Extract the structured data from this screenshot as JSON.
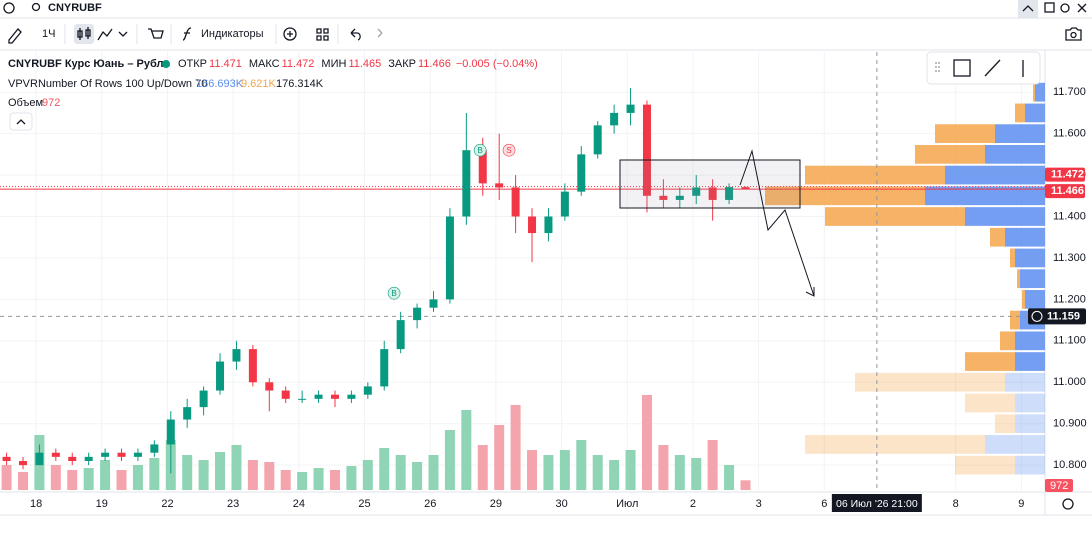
{
  "search": {
    "symbol": "CNYRUBF"
  },
  "toolbar": {
    "interval": "1Ч",
    "indicators": "Индикаторы"
  },
  "legend": {
    "name": "CNYRUBF Курс Юань – Рубль",
    "open_label": "ОТКР",
    "high_label": "МАКС",
    "low_label": "МИН",
    "close_label": "ЗАКР",
    "change": "−0.005 (−0.04%)",
    "vpvr_name": "VPVRNumber Of Rows 100 Up/Down 70",
    "vpvr_up": "166.693K",
    "vpvr_down": "9.621K",
    "vpvr_total": "176.314K",
    "volume_label": "Объем"
  },
  "chart": {
    "type": "candlestick",
    "ylim": [
      10.74,
      11.797
    ],
    "xlim": [
      -0.55,
      15.36
    ],
    "vlim": [
      0,
      10000
    ],
    "profile_lim": [
      0,
      28
    ],
    "grid": true,
    "up_color": "#089981",
    "down_color": "#f23645",
    "profile_up_color": "#5b8def",
    "profile_down_color": "#f5a54a",
    "yticks": [
      {
        "value": 10.8,
        "label": "10.800"
      },
      {
        "value": 10.9,
        "label": "10.900"
      },
      {
        "value": 11.0,
        "label": "11.000"
      },
      {
        "value": 11.1,
        "label": "11.100"
      },
      {
        "value": 11.2,
        "label": "11.200"
      },
      {
        "value": 11.3,
        "label": "11.300"
      },
      {
        "value": 11.4,
        "label": "11.400"
      },
      {
        "value": 11.5,
        "label": "11.500"
      },
      {
        "value": 11.6,
        "label": "11.600"
      },
      {
        "value": 11.7,
        "label": "11.700"
      }
    ],
    "xticks": [
      {
        "value": 0,
        "label": "18"
      },
      {
        "value": 1,
        "label": "19"
      },
      {
        "value": 2,
        "label": "22"
      },
      {
        "value": 3,
        "label": "23"
      },
      {
        "value": 4,
        "label": "24"
      },
      {
        "value": 5,
        "label": "25"
      },
      {
        "value": 6,
        "label": "26"
      },
      {
        "value": 7,
        "label": "29"
      },
      {
        "value": 8,
        "label": "30"
      },
      {
        "value": 9,
        "label": "Июл"
      },
      {
        "value": 10,
        "label": "2"
      },
      {
        "value": 11,
        "label": "3"
      },
      {
        "value": 12,
        "label": "6"
      },
      {
        "value": 14,
        "label": "8"
      },
      {
        "value": 15,
        "label": "9"
      }
    ],
    "candles": [
      {
        "t": -0.45,
        "o": 10.82,
        "h": 10.83,
        "l": 10.8,
        "c": 10.81,
        "v": 2500
      },
      {
        "t": -0.2,
        "o": 10.81,
        "h": 10.82,
        "l": 10.79,
        "c": 10.8,
        "v": 1800
      },
      {
        "t": 0.05,
        "o": 10.8,
        "h": 10.85,
        "l": 10.8,
        "c": 10.83,
        "v": 5500
      },
      {
        "t": 0.3,
        "o": 10.83,
        "h": 10.84,
        "l": 10.81,
        "c": 10.82,
        "v": 2500
      },
      {
        "t": 0.55,
        "o": 10.82,
        "h": 10.83,
        "l": 10.8,
        "c": 10.81,
        "v": 2000
      },
      {
        "t": 0.8,
        "o": 10.81,
        "h": 10.83,
        "l": 10.8,
        "c": 10.82,
        "v": 2200
      },
      {
        "t": 1.05,
        "o": 10.82,
        "h": 10.84,
        "l": 10.81,
        "c": 10.83,
        "v": 3000
      },
      {
        "t": 1.3,
        "o": 10.83,
        "h": 10.84,
        "l": 10.81,
        "c": 10.82,
        "v": 2000
      },
      {
        "t": 1.55,
        "o": 10.82,
        "h": 10.84,
        "l": 10.81,
        "c": 10.83,
        "v": 2500
      },
      {
        "t": 1.8,
        "o": 10.83,
        "h": 10.86,
        "l": 10.82,
        "c": 10.85,
        "v": 3200
      },
      {
        "t": 2.05,
        "o": 10.85,
        "h": 10.93,
        "l": 10.78,
        "c": 10.91,
        "v": 5000
      },
      {
        "t": 2.3,
        "o": 10.91,
        "h": 10.96,
        "l": 10.89,
        "c": 10.94,
        "v": 3500
      },
      {
        "t": 2.55,
        "o": 10.94,
        "h": 10.99,
        "l": 10.92,
        "c": 10.98,
        "v": 3000
      },
      {
        "t": 2.8,
        "o": 10.98,
        "h": 11.07,
        "l": 10.97,
        "c": 11.05,
        "v": 3800
      },
      {
        "t": 3.05,
        "o": 11.05,
        "h": 11.1,
        "l": 11.03,
        "c": 11.08,
        "v": 4500
      },
      {
        "t": 3.3,
        "o": 11.08,
        "h": 11.09,
        "l": 10.99,
        "c": 11.0,
        "v": 3000
      },
      {
        "t": 3.55,
        "o": 11.0,
        "h": 11.01,
        "l": 10.93,
        "c": 10.98,
        "v": 2800
      },
      {
        "t": 3.8,
        "o": 10.98,
        "h": 10.99,
        "l": 10.95,
        "c": 10.96,
        "v": 2000
      },
      {
        "t": 4.05,
        "o": 10.96,
        "h": 10.98,
        "l": 10.95,
        "c": 10.96,
        "v": 1800
      },
      {
        "t": 4.3,
        "o": 10.96,
        "h": 10.98,
        "l": 10.95,
        "c": 10.97,
        "v": 2200
      },
      {
        "t": 4.55,
        "o": 10.97,
        "h": 10.98,
        "l": 10.94,
        "c": 10.96,
        "v": 2000
      },
      {
        "t": 4.8,
        "o": 10.96,
        "h": 10.98,
        "l": 10.95,
        "c": 10.97,
        "v": 2400
      },
      {
        "t": 5.05,
        "o": 10.97,
        "h": 11.0,
        "l": 10.96,
        "c": 10.99,
        "v": 3000
      },
      {
        "t": 5.3,
        "o": 10.99,
        "h": 11.1,
        "l": 10.98,
        "c": 11.08,
        "v": 4200
      },
      {
        "t": 5.55,
        "o": 11.08,
        "h": 11.17,
        "l": 11.07,
        "c": 11.15,
        "v": 3500
      },
      {
        "t": 5.8,
        "o": 11.15,
        "h": 11.19,
        "l": 11.13,
        "c": 11.18,
        "v": 2800
      },
      {
        "t": 6.05,
        "o": 11.18,
        "h": 11.22,
        "l": 11.17,
        "c": 11.2,
        "v": 3500
      },
      {
        "t": 6.3,
        "o": 11.2,
        "h": 11.42,
        "l": 11.19,
        "c": 11.4,
        "v": 6000
      },
      {
        "t": 6.55,
        "o": 11.4,
        "h": 11.65,
        "l": 11.38,
        "c": 11.56,
        "v": 8000
      },
      {
        "t": 6.8,
        "o": 11.56,
        "h": 11.59,
        "l": 11.45,
        "c": 11.48,
        "v": 4500
      },
      {
        "t": 7.05,
        "o": 11.48,
        "h": 11.6,
        "l": 11.44,
        "c": 11.47,
        "v": 6500
      },
      {
        "t": 7.3,
        "o": 11.47,
        "h": 11.5,
        "l": 11.36,
        "c": 11.4,
        "v": 8500
      },
      {
        "t": 7.55,
        "o": 11.4,
        "h": 11.42,
        "l": 11.29,
        "c": 11.36,
        "v": 4000
      },
      {
        "t": 7.8,
        "o": 11.36,
        "h": 11.42,
        "l": 11.34,
        "c": 11.4,
        "v": 3500
      },
      {
        "t": 8.05,
        "o": 11.4,
        "h": 11.48,
        "l": 11.39,
        "c": 11.46,
        "v": 4000
      },
      {
        "t": 8.3,
        "o": 11.46,
        "h": 11.57,
        "l": 11.45,
        "c": 11.55,
        "v": 5000
      },
      {
        "t": 8.55,
        "o": 11.55,
        "h": 11.63,
        "l": 11.54,
        "c": 11.62,
        "v": 3500
      },
      {
        "t": 8.8,
        "o": 11.62,
        "h": 11.67,
        "l": 11.6,
        "c": 11.65,
        "v": 3000
      },
      {
        "t": 9.05,
        "o": 11.65,
        "h": 11.71,
        "l": 11.62,
        "c": 11.67,
        "v": 4000
      },
      {
        "t": 9.3,
        "o": 11.67,
        "h": 11.68,
        "l": 11.41,
        "c": 11.45,
        "v": 9500
      },
      {
        "t": 9.55,
        "o": 11.45,
        "h": 11.49,
        "l": 11.42,
        "c": 11.44,
        "v": 4500
      },
      {
        "t": 9.8,
        "o": 11.44,
        "h": 11.47,
        "l": 11.42,
        "c": 11.45,
        "v": 3500
      },
      {
        "t": 10.05,
        "o": 11.45,
        "h": 11.5,
        "l": 11.43,
        "c": 11.47,
        "v": 3200
      },
      {
        "t": 10.3,
        "o": 11.47,
        "h": 11.49,
        "l": 11.39,
        "c": 11.44,
        "v": 5000
      },
      {
        "t": 10.55,
        "o": 11.44,
        "h": 11.48,
        "l": 11.43,
        "c": 11.471,
        "v": 2500
      },
      {
        "t": 10.8,
        "o": 11.471,
        "h": 11.472,
        "l": 11.465,
        "c": 11.466,
        "v": 972
      }
    ],
    "signals": [
      {
        "t": 5.45,
        "price": 11.215,
        "label": "B"
      },
      {
        "t": 6.76,
        "price": 11.56,
        "label": "B"
      },
      {
        "t": 7.2,
        "price": 11.56,
        "label": "S"
      }
    ],
    "profile": [
      {
        "price": 11.7,
        "up": 1,
        "down": 0.2
      },
      {
        "price": 11.65,
        "up": 2,
        "down": 1
      },
      {
        "price": 11.6,
        "up": 5,
        "down": 6
      },
      {
        "price": 11.55,
        "up": 6,
        "down": 7
      },
      {
        "price": 11.5,
        "up": 10,
        "down": 14
      },
      {
        "price": 11.45,
        "up": 12,
        "down": 16
      },
      {
        "price": 11.4,
        "up": 8,
        "down": 14
      },
      {
        "price": 11.35,
        "up": 4,
        "down": 1.5
      },
      {
        "price": 11.3,
        "up": 3,
        "down": 0.5
      },
      {
        "price": 11.25,
        "up": 2.5,
        "down": 0.3
      },
      {
        "price": 11.2,
        "up": 2,
        "down": 0.3
      },
      {
        "price": 11.15,
        "up": 2.5,
        "down": 1
      },
      {
        "price": 11.1,
        "up": 3,
        "down": 1.5
      },
      {
        "price": 11.05,
        "up": 3,
        "down": 5
      },
      {
        "price": 11.0,
        "up": 4,
        "down": 15
      },
      {
        "price": 10.95,
        "up": 3,
        "down": 5
      },
      {
        "price": 10.9,
        "up": 3,
        "down": 2
      },
      {
        "price": 10.85,
        "up": 6,
        "down": 18
      },
      {
        "price": 10.8,
        "up": 3,
        "down": 6
      }
    ],
    "value_area_low": 11.02,
    "crosshair": {
      "price": 11.159,
      "t": 12.8,
      "time_label": "06 Июл '26  21:00"
    }
  }
}
